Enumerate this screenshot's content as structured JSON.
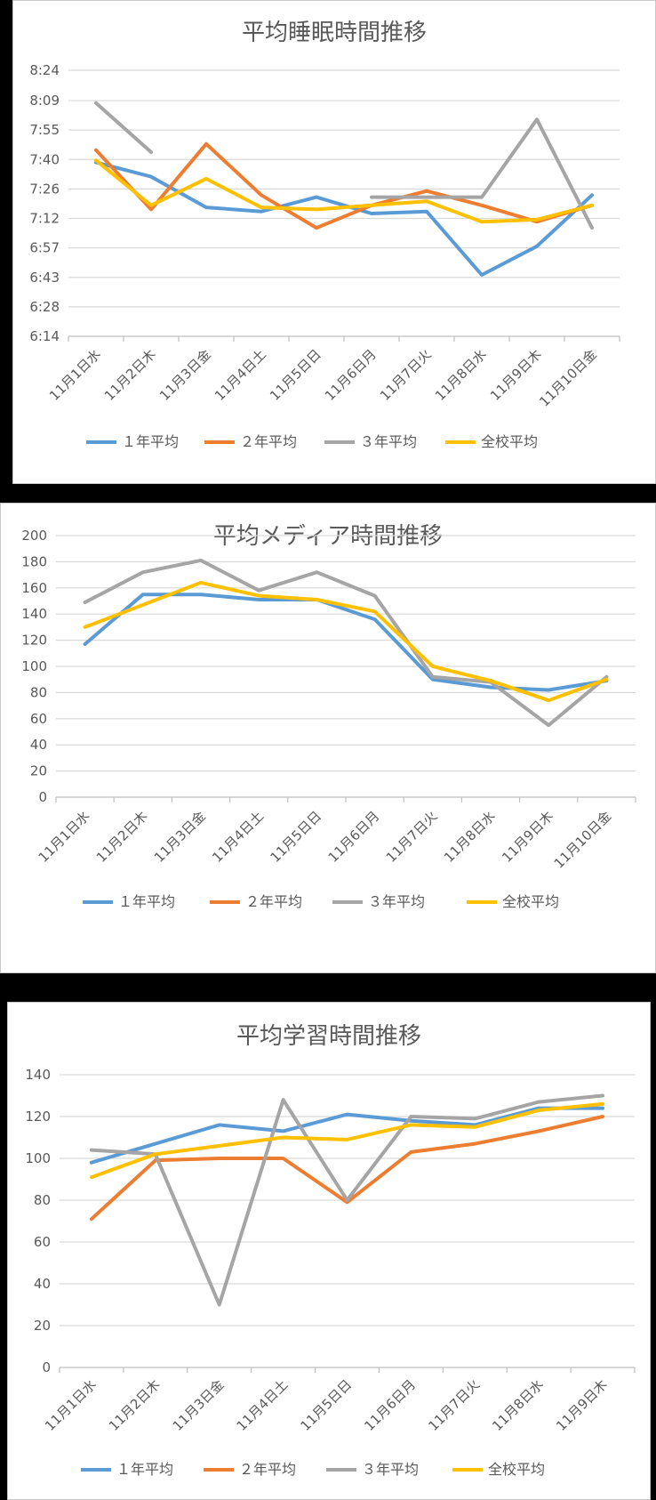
{
  "colors": {
    "series1": "#5B9BD5",
    "series2": "#ED7D31",
    "series3": "#A5A5A5",
    "series4": "#FFC000"
  },
  "chart_data": [
    {
      "type": "line",
      "title": "平均睡眠時間推移",
      "xlabel": "",
      "ylabel": "",
      "categories": [
        "11月1日水",
        "11月2日木",
        "11月3日金",
        "11月4日土",
        "11月5日日",
        "11月6日月",
        "11月7日火",
        "11月8日水",
        "11月9日木",
        "11月10日金"
      ],
      "y_is_time_minutes": true,
      "ylim": [
        374,
        504
      ],
      "y_ticks": [
        374,
        388.4,
        402.8,
        417.2,
        431.6,
        446,
        460.4,
        474.8,
        489.2,
        504
      ],
      "y_tick_labels": [
        "6:14",
        "6:28",
        "6:43",
        "6:57",
        "7:12",
        "7:26",
        "7:40",
        "7:55",
        "8:09",
        "8:24"
      ],
      "legend_position": "bottom",
      "grid": true,
      "series": [
        {
          "name": "１年平均",
          "values": [
            459,
            452,
            437,
            435,
            442,
            434,
            435,
            404,
            418,
            443
          ]
        },
        {
          "name": "２年平均",
          "values": [
            465,
            436,
            468,
            443,
            427,
            438,
            445,
            438,
            430,
            438
          ]
        },
        {
          "name": "３年平均",
          "values": [
            488,
            464,
            null,
            null,
            null,
            442,
            442,
            442,
            480,
            427
          ]
        },
        {
          "name": "全校平均",
          "values": [
            460,
            438,
            451,
            437,
            436,
            438,
            440,
            430,
            431,
            438
          ]
        }
      ]
    },
    {
      "type": "line",
      "title": "平均メディア時間推移",
      "xlabel": "",
      "ylabel": "",
      "categories": [
        "11月1日水",
        "11月2日木",
        "11月3日金",
        "11月4日土",
        "11月5日日",
        "11月6日月",
        "11月7日火",
        "11月8日水",
        "11月9日木",
        "11月10日金"
      ],
      "ylim": [
        0,
        200
      ],
      "y_ticks": [
        0,
        20,
        40,
        60,
        80,
        100,
        120,
        140,
        160,
        180,
        200
      ],
      "y_tick_labels": [
        "0",
        "20",
        "40",
        "60",
        "80",
        "100",
        "120",
        "140",
        "160",
        "180",
        "200"
      ],
      "legend_position": "bottom",
      "grid": true,
      "series": [
        {
          "name": "１年平均",
          "values": [
            117,
            155,
            155,
            151,
            151,
            136,
            90,
            84,
            82,
            89
          ]
        },
        {
          "name": "２年平均",
          "values": [
            null,
            null,
            null,
            null,
            null,
            null,
            null,
            89,
            null,
            null
          ]
        },
        {
          "name": "３年平均",
          "values": [
            149,
            172,
            181,
            158,
            172,
            154,
            92,
            88,
            55,
            92
          ]
        },
        {
          "name": "全校平均",
          "values": [
            130,
            147,
            164,
            154,
            151,
            142,
            100,
            89,
            74,
            90
          ]
        }
      ]
    },
    {
      "type": "line",
      "title": "平均学習時間推移",
      "xlabel": "",
      "ylabel": "",
      "categories": [
        "11月1日水",
        "11月2日木",
        "11月3日金",
        "11月4日土",
        "11月5日日",
        "11月6日月",
        "11月7日火",
        "11月8日水",
        "11月9日木"
      ],
      "ylim": [
        0,
        140
      ],
      "y_ticks": [
        0,
        20,
        40,
        60,
        80,
        100,
        120,
        140
      ],
      "y_tick_labels": [
        "0",
        "20",
        "40",
        "60",
        "80",
        "100",
        "120",
        "140"
      ],
      "legend_position": "bottom",
      "grid": true,
      "series": [
        {
          "name": "１年平均",
          "values": [
            98,
            107,
            116,
            113,
            121,
            118,
            116,
            124,
            124
          ]
        },
        {
          "name": "２年平均",
          "values": [
            71,
            99,
            100,
            100,
            79,
            103,
            107,
            113,
            120
          ]
        },
        {
          "name": "３年平均",
          "values": [
            104,
            102,
            30,
            128,
            80,
            120,
            119,
            127,
            130
          ]
        },
        {
          "name": "全校平均",
          "values": [
            91,
            102,
            106,
            110,
            109,
            116,
            115,
            123,
            126
          ]
        }
      ]
    }
  ]
}
